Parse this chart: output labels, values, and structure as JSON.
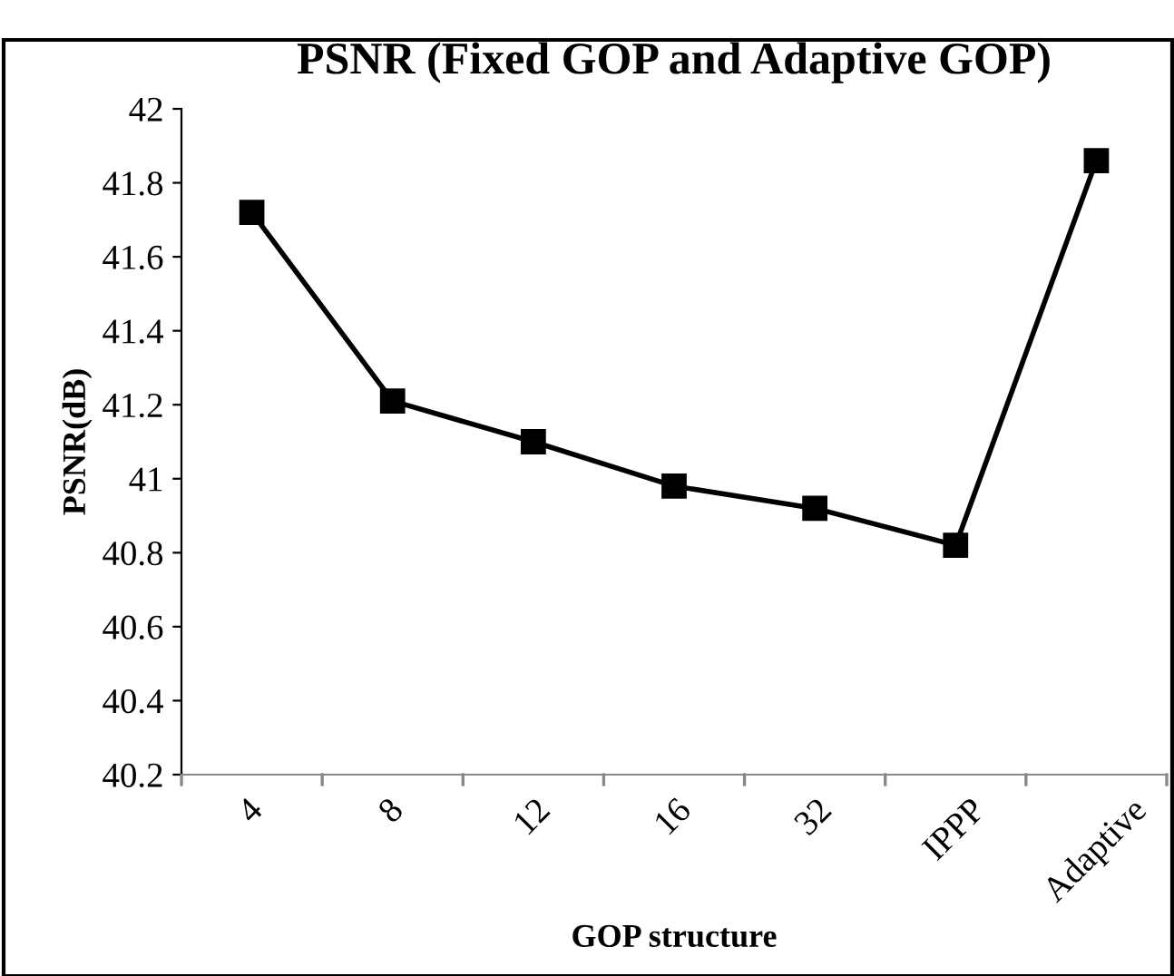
{
  "chart_data": {
    "type": "line",
    "title": "PSNR (Fixed GOP and Adaptive GOP)",
    "xlabel": "GOP structure",
    "ylabel": "PSNR(dB)",
    "categories": [
      "4",
      "8",
      "12",
      "16",
      "32",
      "IPPP",
      "Adaptive"
    ],
    "series": [
      {
        "color": "#000000",
        "values": [
          41.72,
          41.21,
          41.1,
          40.98,
          40.92,
          40.82,
          41.86
        ]
      }
    ],
    "ylim": [
      40.2,
      42
    ],
    "yticks": [
      40.2,
      40.4,
      40.6,
      40.8,
      41,
      41.2,
      41.4,
      41.6,
      41.8,
      42
    ],
    "grid": false,
    "legend": false,
    "marker": "square",
    "line_style": "solid"
  }
}
